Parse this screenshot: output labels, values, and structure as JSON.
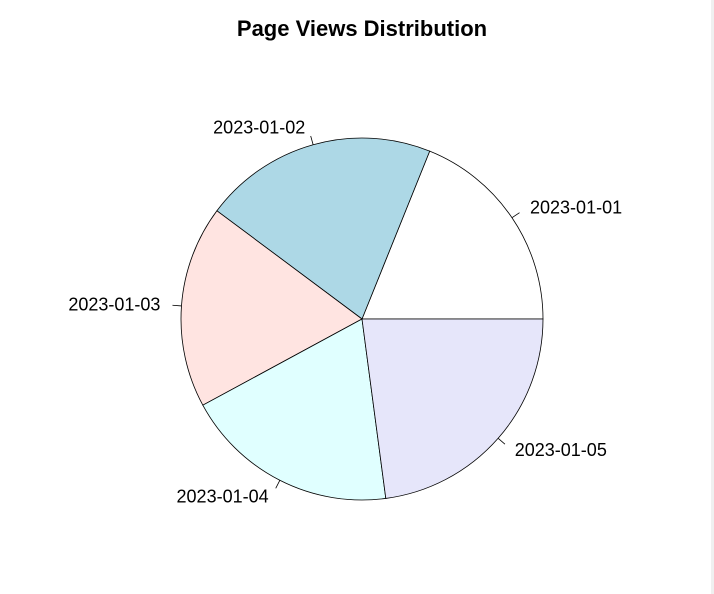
{
  "chart_data": {
    "type": "pie",
    "title": "Page Views Distribution",
    "categories": [
      "2023-01-01",
      "2023-01-02",
      "2023-01-03",
      "2023-01-04",
      "2023-01-05"
    ],
    "values": [
      18.9,
      20.9,
      18.1,
      19.2,
      22.9
    ],
    "colors": [
      "#FFFFFF",
      "#ADD8E6",
      "#FFE4E1",
      "#E0FFFF",
      "#E6E6FA"
    ],
    "start_angle_deg": 0,
    "direction": "counterclockwise",
    "border_color": "#000000"
  }
}
